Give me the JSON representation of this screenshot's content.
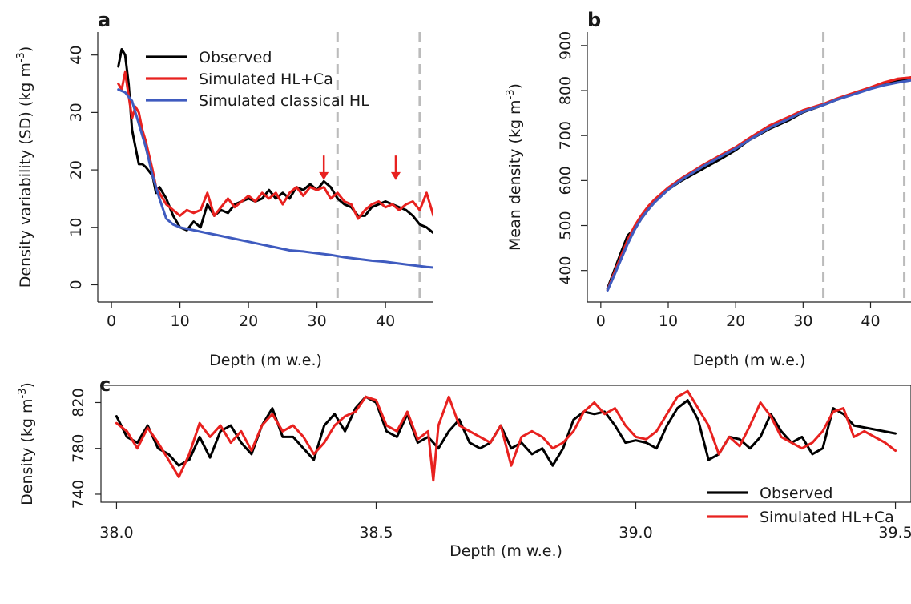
{
  "chart_data": [
    {
      "panel": "a",
      "type": "line",
      "xlabel": "Depth (m w.e.)",
      "ylabel": "Density variability (SD) (kg m-3)",
      "xlim": [
        -2,
        47
      ],
      "ylim": [
        -3,
        44
      ],
      "xticks": [
        0,
        10,
        20,
        30,
        40
      ],
      "yticks": [
        0,
        10,
        20,
        30,
        40
      ],
      "ytick_rotation": "vertical",
      "frame": "L-shaped",
      "legend": "top-left",
      "vlines": [
        33,
        45
      ],
      "arrows": [
        {
          "x": 31,
          "y_from": 22.5,
          "y_to": 18.5
        },
        {
          "x": 41.5,
          "y_from": 22.5,
          "y_to": 18.5
        }
      ],
      "series": [
        {
          "name": "Observed",
          "color": "#000000",
          "x": [
            1,
            1.5,
            2,
            2.5,
            3,
            3.5,
            4,
            4.5,
            5,
            6,
            6.5,
            7,
            8,
            9,
            10,
            11,
            12,
            13,
            14,
            15,
            16,
            17,
            18,
            19,
            20,
            21,
            22,
            23,
            24,
            25,
            26,
            27,
            28,
            29,
            30,
            31,
            32,
            33,
            34,
            35,
            36,
            37,
            38,
            39,
            40,
            41,
            42,
            43,
            44,
            45,
            46,
            47
          ],
          "y": [
            38,
            41,
            40,
            35,
            27,
            24,
            21,
            21,
            20.5,
            19,
            16,
            17,
            15,
            12,
            10,
            9.5,
            11,
            10,
            14,
            12,
            13,
            12.5,
            14,
            14.5,
            15,
            14.5,
            15,
            16.5,
            15,
            16,
            15,
            17,
            16.5,
            17.5,
            16.5,
            18,
            17,
            15,
            14,
            13.5,
            12,
            12,
            13.5,
            14,
            14.5,
            14,
            13.5,
            13,
            12,
            10.5,
            10,
            9
          ]
        },
        {
          "name": "Simulated HL+Ca",
          "color": "#e8211f",
          "x": [
            1,
            1.5,
            2,
            2.5,
            3,
            3.5,
            4,
            4.5,
            5,
            6,
            6.5,
            7,
            8,
            9,
            10,
            11,
            12,
            13,
            14,
            15,
            16,
            17,
            18,
            19,
            20,
            21,
            22,
            23,
            24,
            25,
            26,
            27,
            28,
            29,
            30,
            31,
            32,
            33,
            34,
            35,
            36,
            37,
            38,
            39,
            40,
            41,
            42,
            43,
            44,
            45,
            46,
            47
          ],
          "y": [
            35,
            34,
            37,
            33,
            29,
            31,
            30,
            27,
            25,
            20,
            17,
            16,
            14,
            13,
            12,
            13,
            12.5,
            13,
            16,
            12,
            13.5,
            15,
            13.5,
            14.5,
            15.5,
            14.5,
            16,
            15,
            16,
            14,
            16,
            17,
            15.5,
            17,
            16.5,
            17,
            15,
            16,
            14.5,
            14,
            11.5,
            13,
            14,
            14.5,
            13.5,
            14,
            13,
            14,
            14.5,
            13,
            16,
            12
          ]
        },
        {
          "name": "Simulated classical HL",
          "color": "#3f5bbf",
          "x": [
            1,
            2,
            3,
            4,
            5,
            6,
            7,
            8,
            9,
            10,
            12,
            14,
            16,
            18,
            20,
            22,
            24,
            26,
            28,
            30,
            32,
            34,
            36,
            38,
            40,
            42,
            44,
            46,
            47
          ],
          "y": [
            34,
            33.5,
            32,
            28,
            24,
            19,
            15,
            11.5,
            10.5,
            10,
            9.5,
            9,
            8.5,
            8,
            7.5,
            7,
            6.5,
            6,
            5.8,
            5.5,
            5.2,
            4.8,
            4.5,
            4.2,
            4,
            3.7,
            3.4,
            3.1,
            3
          ]
        }
      ]
    },
    {
      "panel": "b",
      "type": "line",
      "xlabel": "Depth (m w.e.)",
      "ylabel": "Mean density (kg m-3)",
      "xlim": [
        -2,
        46
      ],
      "ylim": [
        330,
        930
      ],
      "xticks": [
        0,
        10,
        20,
        30,
        40
      ],
      "yticks": [
        400,
        500,
        600,
        700,
        800,
        900
      ],
      "ytick_rotation": "vertical",
      "frame": "L-shaped",
      "vlines": [
        33,
        45
      ],
      "series": [
        {
          "name": "Observed",
          "color": "#000000",
          "x": [
            1,
            2,
            3,
            4,
            5,
            6,
            7,
            8,
            10,
            12,
            15,
            18,
            20,
            22,
            25,
            28,
            30,
            33,
            35,
            38,
            40,
            42,
            44,
            46
          ],
          "y": [
            360,
            400,
            440,
            478,
            492,
            515,
            535,
            553,
            580,
            600,
            625,
            650,
            668,
            690,
            715,
            735,
            752,
            768,
            780,
            795,
            805,
            815,
            822,
            829
          ]
        },
        {
          "name": "Simulated HL+Ca",
          "color": "#e8211f",
          "x": [
            1,
            2,
            3,
            4,
            5,
            6,
            7,
            8,
            10,
            12,
            15,
            18,
            20,
            22,
            25,
            28,
            30,
            33,
            35,
            38,
            40,
            42,
            44,
            46
          ],
          "y": [
            357,
            395,
            432,
            468,
            498,
            522,
            542,
            558,
            584,
            605,
            633,
            658,
            674,
            694,
            722,
            742,
            756,
            770,
            782,
            797,
            807,
            818,
            826,
            829
          ]
        },
        {
          "name": "Simulated classical HL",
          "color": "#3f5bbf",
          "x": [
            1,
            2,
            3,
            4,
            5,
            6,
            7,
            8,
            10,
            12,
            15,
            18,
            20,
            22,
            25,
            28,
            30,
            33,
            35,
            38,
            40,
            42,
            44,
            46
          ],
          "y": [
            356,
            390,
            425,
            460,
            490,
            515,
            535,
            552,
            580,
            602,
            630,
            655,
            671,
            690,
            717,
            738,
            753,
            768,
            780,
            794,
            804,
            812,
            818,
            823
          ]
        }
      ]
    },
    {
      "panel": "c",
      "type": "line",
      "xlabel": "Depth (m w.e.)",
      "ylabel": "Density (kg m-3)",
      "xlim": [
        37.97,
        39.53
      ],
      "ylim": [
        733,
        835
      ],
      "xticks": [
        38.0,
        38.5,
        39.0,
        39.5
      ],
      "xtick_labels": [
        "38.0",
        "38.5",
        "39.0",
        "39.5"
      ],
      "yticks": [
        740,
        780,
        820
      ],
      "ytick_rotation": "vertical",
      "frame": "box",
      "legend": "bottom-right",
      "series": [
        {
          "name": "Observed",
          "color": "#000000",
          "x": [
            38.0,
            38.02,
            38.04,
            38.06,
            38.08,
            38.1,
            38.12,
            38.14,
            38.16,
            38.18,
            38.2,
            38.22,
            38.24,
            38.26,
            38.28,
            38.3,
            38.32,
            38.34,
            38.36,
            38.38,
            38.4,
            38.42,
            38.44,
            38.46,
            38.48,
            38.5,
            38.52,
            38.54,
            38.56,
            38.58,
            38.6,
            38.62,
            38.64,
            38.66,
            38.68,
            38.7,
            38.72,
            38.74,
            38.76,
            38.78,
            38.8,
            38.82,
            38.84,
            38.86,
            38.88,
            38.9,
            38.92,
            38.94,
            38.96,
            38.98,
            39.0,
            39.02,
            39.04,
            39.06,
            39.08,
            39.1,
            39.12,
            39.14,
            39.16,
            39.18,
            39.2,
            39.22,
            39.24,
            39.26,
            39.28,
            39.3,
            39.32,
            39.34,
            39.36,
            39.38,
            39.4,
            39.42,
            39.5
          ],
          "y": [
            808,
            790,
            785,
            800,
            780,
            775,
            765,
            770,
            790,
            772,
            795,
            800,
            785,
            775,
            800,
            815,
            790,
            790,
            780,
            770,
            800,
            810,
            795,
            815,
            825,
            820,
            795,
            790,
            810,
            785,
            790,
            780,
            795,
            805,
            785,
            780,
            785,
            800,
            780,
            785,
            775,
            780,
            765,
            780,
            805,
            812,
            810,
            812,
            800,
            785,
            787,
            785,
            780,
            800,
            815,
            822,
            805,
            770,
            775,
            790,
            788,
            780,
            790,
            810,
            795,
            785,
            790,
            775,
            780,
            815,
            810,
            800,
            793
          ]
        },
        {
          "name": "Simulated HL+Ca",
          "color": "#e8211f",
          "x": [
            38.0,
            38.02,
            38.04,
            38.06,
            38.08,
            38.1,
            38.12,
            38.14,
            38.16,
            38.18,
            38.2,
            38.22,
            38.24,
            38.26,
            38.28,
            38.3,
            38.32,
            38.34,
            38.36,
            38.38,
            38.4,
            38.42,
            38.44,
            38.46,
            38.48,
            38.5,
            38.52,
            38.54,
            38.56,
            38.58,
            38.6,
            38.61,
            38.62,
            38.64,
            38.66,
            38.68,
            38.7,
            38.72,
            38.74,
            38.76,
            38.78,
            38.8,
            38.82,
            38.84,
            38.86,
            38.88,
            38.9,
            38.92,
            38.94,
            38.96,
            38.98,
            39.0,
            39.02,
            39.04,
            39.06,
            39.08,
            39.1,
            39.12,
            39.14,
            39.16,
            39.18,
            39.2,
            39.22,
            39.24,
            39.26,
            39.28,
            39.3,
            39.32,
            39.34,
            39.36,
            39.38,
            39.4,
            39.42,
            39.44,
            39.46,
            39.48,
            39.5
          ],
          "y": [
            802,
            795,
            780,
            798,
            785,
            770,
            755,
            775,
            802,
            790,
            800,
            785,
            795,
            778,
            800,
            810,
            795,
            800,
            790,
            775,
            785,
            800,
            808,
            812,
            825,
            822,
            800,
            795,
            812,
            788,
            795,
            752,
            800,
            825,
            800,
            795,
            790,
            785,
            800,
            765,
            790,
            795,
            790,
            780,
            785,
            795,
            812,
            820,
            810,
            815,
            800,
            790,
            788,
            795,
            810,
            825,
            830,
            815,
            800,
            775,
            790,
            782,
            800,
            820,
            808,
            790,
            785,
            780,
            785,
            795,
            812,
            815,
            790,
            795,
            790,
            785,
            778
          ]
        }
      ]
    }
  ],
  "legends": {
    "a": [
      "Observed",
      "Simulated HL+Ca",
      "Simulated classical HL"
    ],
    "c": [
      "Observed",
      "Simulated HL+Ca"
    ]
  }
}
